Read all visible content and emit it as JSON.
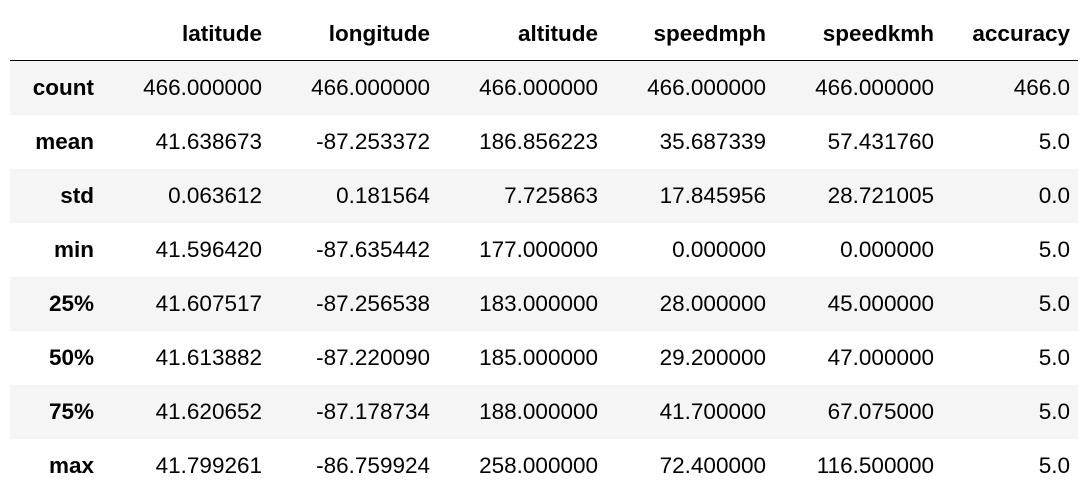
{
  "table": {
    "index_header": "",
    "columns": [
      "latitude",
      "longitude",
      "altitude",
      "speedmph",
      "speedkmh",
      "accuracy"
    ],
    "rows": [
      {
        "label": "count",
        "values": [
          "466.000000",
          "466.000000",
          "466.000000",
          "466.000000",
          "466.000000",
          "466.0"
        ]
      },
      {
        "label": "mean",
        "values": [
          "41.638673",
          "-87.253372",
          "186.856223",
          "35.687339",
          "57.431760",
          "5.0"
        ]
      },
      {
        "label": "std",
        "values": [
          "0.063612",
          "0.181564",
          "7.725863",
          "17.845956",
          "28.721005",
          "0.0"
        ]
      },
      {
        "label": "min",
        "values": [
          "41.596420",
          "-87.635442",
          "177.000000",
          "0.000000",
          "0.000000",
          "5.0"
        ]
      },
      {
        "label": "25%",
        "values": [
          "41.607517",
          "-87.256538",
          "183.000000",
          "28.000000",
          "45.000000",
          "5.0"
        ]
      },
      {
        "label": "50%",
        "values": [
          "41.613882",
          "-87.220090",
          "185.000000",
          "29.200000",
          "47.000000",
          "5.0"
        ]
      },
      {
        "label": "75%",
        "values": [
          "41.620652",
          "-87.178734",
          "188.000000",
          "41.700000",
          "67.075000",
          "5.0"
        ]
      },
      {
        "label": "max",
        "values": [
          "41.799261",
          "-86.759924",
          "258.000000",
          "72.400000",
          "116.500000",
          "5.0"
        ]
      }
    ]
  }
}
